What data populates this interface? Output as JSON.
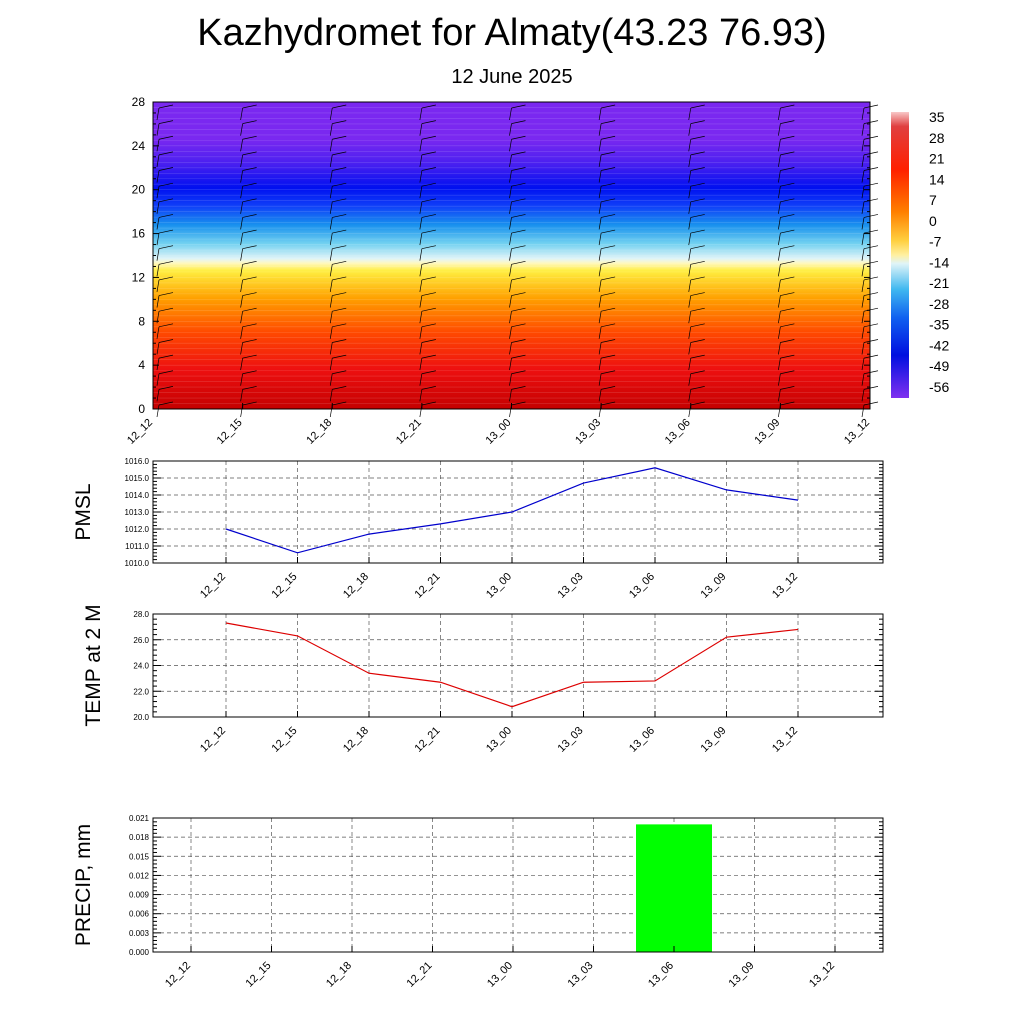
{
  "title": "Kazhydromet for Almaty(43.23 76.93)",
  "subtitle": "12 June 2025",
  "colors": {
    "pmsl_line": "#0000cc",
    "temp_line": "#dd0000",
    "precip_bar": "#00ff00"
  },
  "chart_data": [
    {
      "type": "heatmap",
      "title": "",
      "x_labels": [
        "12_12",
        "12_15",
        "12_18",
        "12_21",
        "13_00",
        "13_03",
        "13_06",
        "13_09",
        "13_12"
      ],
      "ylim": [
        0,
        28
      ],
      "y_ticks": [
        "0",
        "4",
        "8",
        "12",
        "16",
        "20",
        "24",
        "28"
      ],
      "colorbar_labels": [
        "35",
        "28",
        "21",
        "14",
        "7",
        "0",
        "-7",
        "-14",
        "-21",
        "-28",
        "-35",
        "-42",
        "-49",
        "-56"
      ],
      "grid": false,
      "legend": "right",
      "note_bands": [
        {
          "y0": 0,
          "y1": 4,
          "value": 28
        },
        {
          "y0": 4,
          "y1": 8,
          "value": 21
        },
        {
          "y0": 8,
          "y1": 12,
          "value": 7
        },
        {
          "y0": 12,
          "y1": 13.3,
          "value": -7
        },
        {
          "y0": 13.3,
          "y1": 16,
          "value": -28
        },
        {
          "y0": 16,
          "y1": 19,
          "value": -49
        },
        {
          "y0": 19,
          "y1": 22,
          "value": -56
        },
        {
          "y0": 22,
          "y1": 28,
          "value": -56
        }
      ]
    },
    {
      "type": "line",
      "ylabel": "PMSL",
      "categories": [
        "12_12",
        "12_15",
        "12_18",
        "12_21",
        "13_00",
        "13_03",
        "13_06",
        "13_09",
        "13_12"
      ],
      "values": [
        1012.0,
        1010.6,
        1011.7,
        1012.3,
        1013.0,
        1014.7,
        1015.6,
        1014.3,
        1013.7
      ],
      "ylim": [
        1010.0,
        1016.0
      ],
      "y_ticks": [
        "1010.0",
        "1011.0",
        "1012.0",
        "1013.0",
        "1014.0",
        "1015.0",
        "1016.0"
      ],
      "grid": true
    },
    {
      "type": "line",
      "ylabel": "TEMP at 2 M",
      "categories": [
        "12_12",
        "12_15",
        "12_18",
        "12_21",
        "13_00",
        "13_03",
        "13_06",
        "13_09",
        "13_12"
      ],
      "values": [
        27.3,
        26.3,
        23.4,
        22.7,
        20.8,
        22.7,
        22.8,
        26.2,
        26.8
      ],
      "ylim": [
        20.0,
        28.0
      ],
      "y_ticks": [
        "20.0",
        "22.0",
        "24.0",
        "26.0",
        "28.0"
      ],
      "grid": true
    },
    {
      "type": "bar",
      "ylabel": "PRECIP, mm",
      "categories": [
        "12_12",
        "12_15",
        "12_18",
        "12_21",
        "13_00",
        "13_03",
        "13_06",
        "13_09",
        "13_12"
      ],
      "values": [
        0,
        0,
        0,
        0,
        0,
        0,
        0.02,
        0,
        0
      ],
      "ylim": [
        0,
        0.021
      ],
      "y_ticks": [
        "0.000",
        "0.003",
        "0.006",
        "0.009",
        "0.012",
        "0.015",
        "0.018",
        "0.021"
      ],
      "grid": true
    }
  ]
}
